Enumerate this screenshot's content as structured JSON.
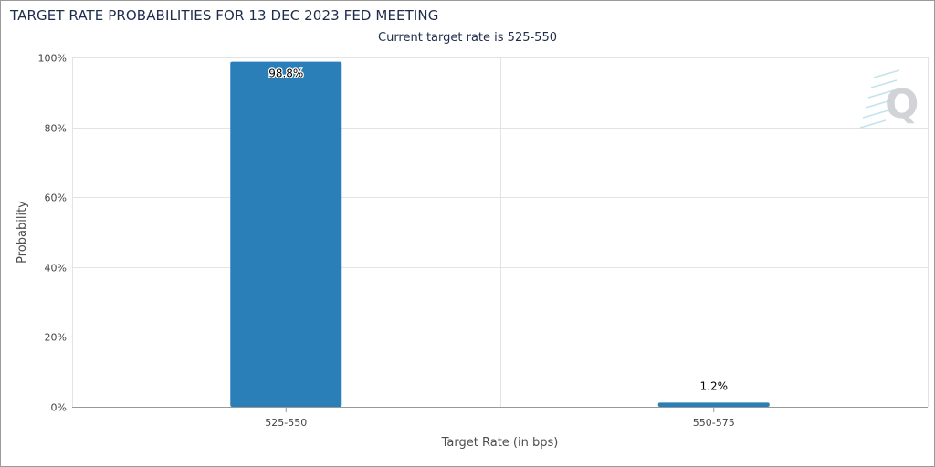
{
  "chart_data": {
    "type": "bar",
    "title": "TARGET RATE PROBABILITIES FOR 13 DEC 2023 FED MEETING",
    "subtitle": "Current target rate is 525-550",
    "xlabel": "Target Rate (in bps)",
    "ylabel": "Probability",
    "categories": [
      "525-550",
      "550-575"
    ],
    "values": [
      98.8,
      1.2
    ],
    "data_labels": [
      "98.8%",
      "1.2%"
    ],
    "ylim": [
      0,
      100
    ],
    "yticks": [
      0,
      20,
      40,
      60,
      80,
      100
    ],
    "ytick_labels": [
      "0%",
      "20%",
      "40%",
      "60%",
      "80%",
      "100%"
    ],
    "grid": true,
    "bar_color": "#2a7fb8",
    "watermark": "Q"
  }
}
